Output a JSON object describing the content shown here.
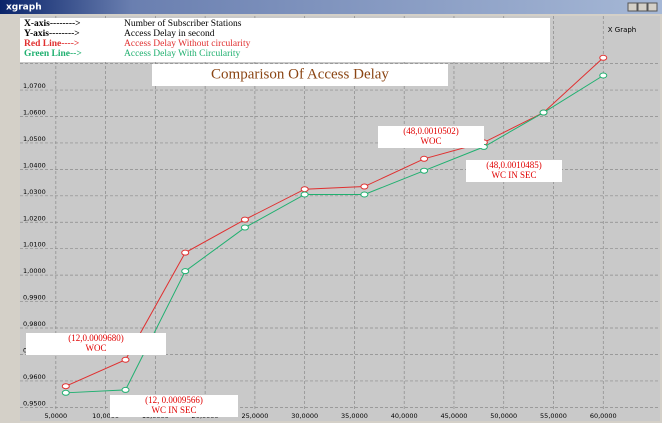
{
  "window_title": "xgraph",
  "chart_data": {
    "type": "line",
    "title": "Comparison Of Access Delay",
    "corner_label": "X Graph",
    "x_axis_key": "X-axis-------->",
    "xlabel": "Number of Subscriber Stations",
    "y_axis_key": "Y-axis-------->",
    "ylabel": "Access Delay in second",
    "x": [
      6,
      12,
      18,
      24,
      30,
      36,
      42,
      48,
      54,
      60
    ],
    "series": [
      {
        "key": "Red Line---->",
        "name": "Access Delay Without circularity",
        "color": "#e03030",
        "values": [
          0.958,
          0.968,
          1.0085,
          1.021,
          1.0325,
          1.0335,
          1.044,
          1.0502,
          1.0615,
          1.0822
        ]
      },
      {
        "key": "Green Line-->",
        "name": "Access Delay With Circularity",
        "color": "#20b070",
        "values": [
          0.9555,
          0.9566,
          1.0015,
          1.018,
          1.0305,
          1.0305,
          1.0395,
          1.0485,
          1.0615,
          1.0755
        ]
      }
    ],
    "xlim": [
      1.4,
      65.7
    ],
    "ylim": [
      0.949,
      1.098
    ],
    "xticks": [
      {
        "value": 5,
        "label": "5,0000"
      },
      {
        "value": 10,
        "label": "10,0000"
      },
      {
        "value": 15,
        "label": "15,0000"
      },
      {
        "value": 20,
        "label": "20,0000"
      },
      {
        "value": 25,
        "label": "25,0000"
      },
      {
        "value": 30,
        "label": "30,0000"
      },
      {
        "value": 35,
        "label": "35,0000"
      },
      {
        "value": 40,
        "label": "40,0000"
      },
      {
        "value": 45,
        "label": "45,0000"
      },
      {
        "value": 50,
        "label": "50,0000"
      },
      {
        "value": 55,
        "label": "55,0000"
      },
      {
        "value": 60,
        "label": "60,0000"
      }
    ],
    "yticks": [
      {
        "value": 0.95,
        "label": "0,9500"
      },
      {
        "value": 0.96,
        "label": "0,9600"
      },
      {
        "value": 0.97,
        "label": "0,9700"
      },
      {
        "value": 0.98,
        "label": "0,9800"
      },
      {
        "value": 0.99,
        "label": "0,9900"
      },
      {
        "value": 1.0,
        "label": "1,0000"
      },
      {
        "value": 1.01,
        "label": "1,0100"
      },
      {
        "value": 1.02,
        "label": "1,0200"
      },
      {
        "value": 1.03,
        "label": "1,0300"
      },
      {
        "value": 1.04,
        "label": "1,0400"
      },
      {
        "value": 1.05,
        "label": "1,0500"
      },
      {
        "value": 1.06,
        "label": "1,0600"
      },
      {
        "value": 1.07,
        "label": "1,0700"
      },
      {
        "value": 1.08,
        "label": "1,0800"
      }
    ],
    "grid": true,
    "annotations": [
      {
        "lines": [
          "(12,0.0009680)",
          "WOC"
        ]
      },
      {
        "lines": [
          "(12, 0.0009566)",
          "WC IN SEC"
        ]
      },
      {
        "lines": [
          "(48,0.0010502)",
          "WOC"
        ]
      },
      {
        "lines": [
          "(48,0.0010485)",
          "WC IN SEC"
        ]
      }
    ]
  }
}
